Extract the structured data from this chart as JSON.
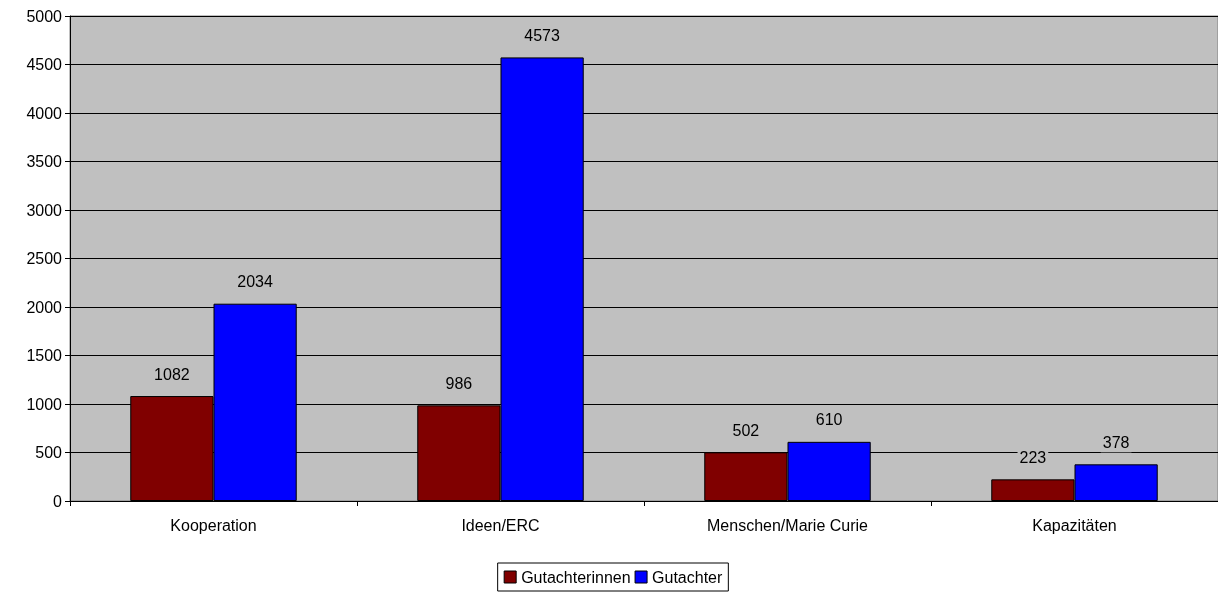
{
  "chart_data": {
    "type": "bar",
    "categories": [
      "Kooperation",
      "Ideen/ERC",
      "Menschen/Marie Curie",
      "Kapazitäten"
    ],
    "series": [
      {
        "name": "Gutachterinnen",
        "color": "#800000",
        "values": [
          1082,
          986,
          502,
          223
        ]
      },
      {
        "name": "Gutachter",
        "color": "#0000ff",
        "values": [
          2034,
          4573,
          610,
          378
        ]
      }
    ],
    "ylim": [
      0,
      5000
    ],
    "yticks": [
      0,
      500,
      1000,
      1500,
      2000,
      2500,
      3000,
      3500,
      4000,
      4500,
      5000
    ],
    "grid": "y",
    "legend": "bottom",
    "data_labels": true
  }
}
